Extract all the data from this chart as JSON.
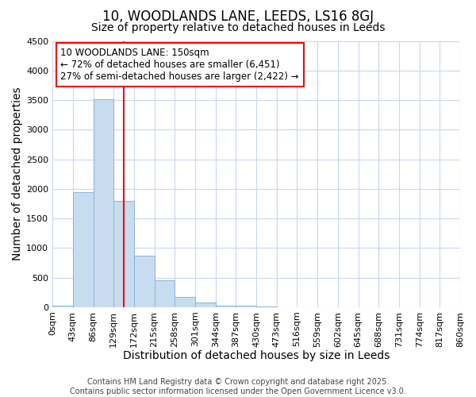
{
  "title": "10, WOODLANDS LANE, LEEDS, LS16 8GJ",
  "subtitle": "Size of property relative to detached houses in Leeds",
  "xlabel": "Distribution of detached houses by size in Leeds",
  "ylabel": "Number of detached properties",
  "bar_values": [
    30,
    1950,
    3520,
    1800,
    870,
    450,
    175,
    80,
    30,
    20,
    5,
    2,
    0,
    0,
    0,
    0,
    0,
    0,
    0,
    0
  ],
  "bin_edges": [
    0,
    43,
    86,
    129,
    172,
    215,
    258,
    301,
    344,
    387,
    430,
    473,
    516,
    559,
    602,
    645,
    688,
    731,
    774,
    817,
    860
  ],
  "tick_labels": [
    "0sqm",
    "43sqm",
    "86sqm",
    "129sqm",
    "172sqm",
    "215sqm",
    "258sqm",
    "301sqm",
    "344sqm",
    "387sqm",
    "430sqm",
    "473sqm",
    "516sqm",
    "559sqm",
    "602sqm",
    "645sqm",
    "688sqm",
    "731sqm",
    "774sqm",
    "817sqm",
    "860sqm"
  ],
  "bar_color": "#c8dcf0",
  "bar_edgecolor": "#8ab4d8",
  "red_line_x": 150,
  "ylim": [
    0,
    4500
  ],
  "yticks": [
    0,
    500,
    1000,
    1500,
    2000,
    2500,
    3000,
    3500,
    4000,
    4500
  ],
  "annotation_title": "10 WOODLANDS LANE: 150sqm",
  "annotation_line1": "← 72% of detached houses are smaller (6,451)",
  "annotation_line2": "27% of semi-detached houses are larger (2,422) →",
  "footer_line1": "Contains HM Land Registry data © Crown copyright and database right 2025.",
  "footer_line2": "Contains public sector information licensed under the Open Government Licence v3.0.",
  "background_color": "#ffffff",
  "grid_color": "#c8d8f0",
  "title_fontsize": 12,
  "subtitle_fontsize": 10,
  "axis_label_fontsize": 10,
  "tick_fontsize": 8,
  "annot_fontsize": 8.5,
  "footer_fontsize": 7
}
